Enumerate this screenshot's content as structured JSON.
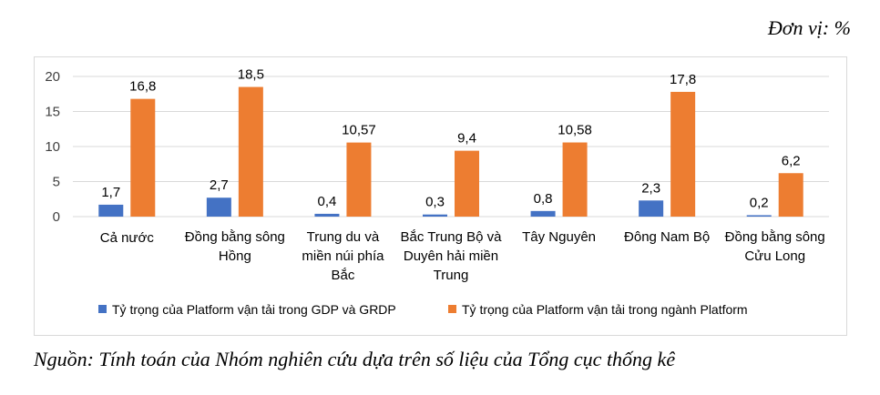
{
  "unit_label": "Đơn vị: %",
  "source_note": "Nguồn: Tính toán của Nhóm nghiên cứu dựa trên số liệu của Tổng cục thống kê",
  "chart_data": {
    "type": "bar",
    "categories": [
      [
        "Cả nước"
      ],
      [
        "Đồng bằng sông",
        "Hồng"
      ],
      [
        "Trung du và",
        "miền núi phía",
        "Bắc"
      ],
      [
        "Bắc Trung Bộ và",
        "Duyên hải miền",
        "Trung"
      ],
      [
        "Tây Nguyên"
      ],
      [
        "Đông Nam Bộ"
      ],
      [
        "Đồng bằng sông",
        "Cửu Long"
      ]
    ],
    "series": [
      {
        "name": "Tỷ trọng của Platform vận tải trong GDP và GRDP",
        "color": "#4472c4",
        "values": [
          1.7,
          2.7,
          0.4,
          0.3,
          0.8,
          2.3,
          0.2
        ],
        "labels": [
          "1,7",
          "2,7",
          "0,4",
          "0,3",
          "0,8",
          "2,3",
          "0,2"
        ]
      },
      {
        "name": "Tỷ trọng của Platform vận tải trong ngành Platform",
        "color": "#ed7d31",
        "values": [
          16.8,
          18.5,
          10.57,
          9.4,
          10.58,
          17.8,
          6.2
        ],
        "labels": [
          "16,8",
          "18,5",
          "10,57",
          "9,4",
          "10,58",
          "17,8",
          "6,2"
        ]
      }
    ],
    "yticks": [
      0,
      5,
      10,
      15,
      20
    ],
    "ylim": [
      0,
      20
    ],
    "grid": true,
    "legend_position": "bottom"
  }
}
